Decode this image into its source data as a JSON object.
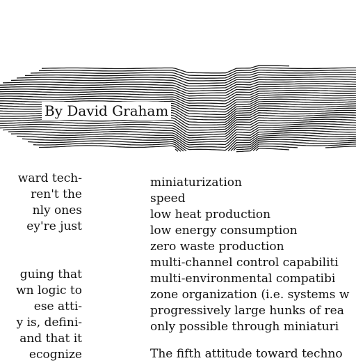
{
  "byline": "By David Graham",
  "left_column": {
    "block1": [
      "ward tech-",
      "ren't the",
      "nly ones",
      "ey're just"
    ],
    "block2": [
      "guing that",
      "wn logic to",
      "ese atti-",
      "y is, defini-",
      "and that it",
      "ecognize"
    ]
  },
  "right_column": {
    "items": [
      "miniaturization",
      "speed",
      "low heat production",
      "low energy consumption",
      "zero waste production",
      "multi-channel control capabiliti",
      "multi-environmental compatibi",
      "zone organization (i.e. systems w",
      "progressively large hunks of rea",
      "only possible through miniaturi"
    ],
    "next_paragraph": "The fifth attitude toward techno"
  }
}
